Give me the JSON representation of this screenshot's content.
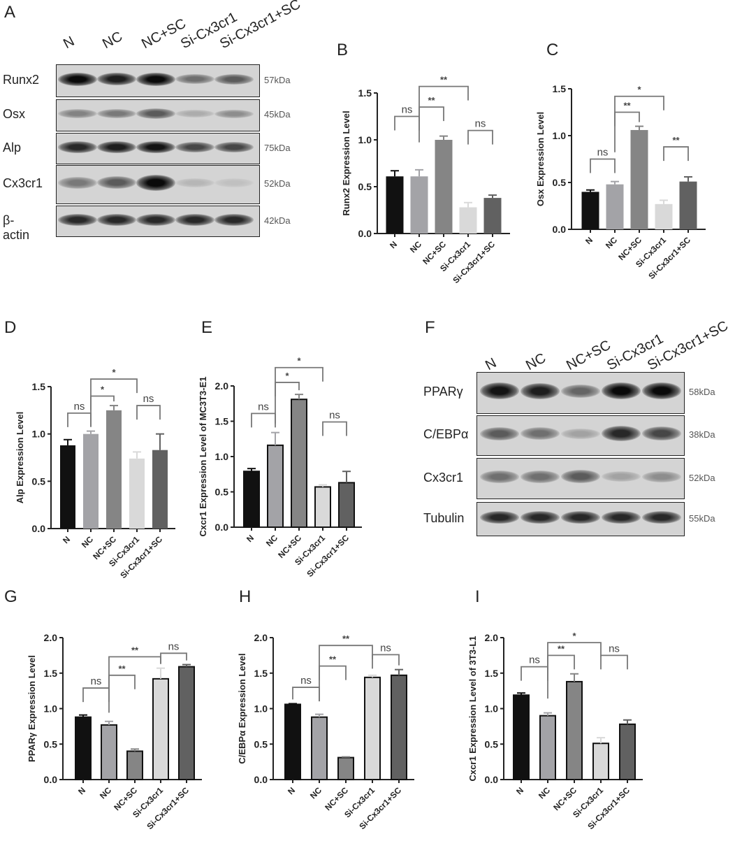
{
  "panel_letters": [
    "A",
    "B",
    "C",
    "D",
    "E",
    "F",
    "G",
    "H",
    "I"
  ],
  "groups": [
    "N",
    "NC",
    "NC+SC",
    "Si-Cx3cr1",
    "Si-Cx3cr1+SC"
  ],
  "group_colors": [
    "#111111",
    "#a3a3a7",
    "#858585",
    "#d9d9d9",
    "#616161"
  ],
  "blot_A": {
    "lanes": [
      "N",
      "NC",
      "NC+SC",
      "Si-Cx3cr1",
      "Si-Cx3cr1+SC"
    ],
    "rows": [
      {
        "protein": "Runx2",
        "kda": "57kDa",
        "band_intensity": [
          1.0,
          0.9,
          1.0,
          0.5,
          0.6
        ]
      },
      {
        "protein": "Osx",
        "kda": "45kDa",
        "band_intensity": [
          0.4,
          0.45,
          0.6,
          0.2,
          0.35
        ]
      },
      {
        "protein": "Alp",
        "kda": "75kDa",
        "band_intensity": [
          0.85,
          0.9,
          0.95,
          0.7,
          0.7
        ]
      },
      {
        "protein": "Cx3cr1",
        "kda": "52kDa",
        "band_intensity": [
          0.45,
          0.6,
          1.0,
          0.15,
          0.1
        ]
      },
      {
        "protein": "β-actin",
        "kda": "42kDa",
        "band_intensity": [
          0.85,
          0.85,
          0.85,
          0.85,
          0.85
        ]
      }
    ]
  },
  "blot_F": {
    "lanes": [
      "N",
      "NC",
      "NC+SC",
      "Si-Cx3cr1",
      "Si-Cx3cr1+SC"
    ],
    "rows": [
      {
        "protein": "PPARγ",
        "kda": "58kDa",
        "band_intensity": [
          0.95,
          0.9,
          0.55,
          1.0,
          1.0
        ]
      },
      {
        "protein": "C/EBPα",
        "kda": "38kDa",
        "band_intensity": [
          0.6,
          0.5,
          0.25,
          0.85,
          0.7
        ]
      },
      {
        "protein": "Cx3cr1",
        "kda": "52kDa",
        "band_intensity": [
          0.5,
          0.5,
          0.6,
          0.25,
          0.35
        ]
      },
      {
        "protein": "Tubulin",
        "kda": "55kDa",
        "band_intensity": [
          0.85,
          0.85,
          0.85,
          0.85,
          0.85
        ]
      }
    ]
  },
  "chart_data": [
    {
      "panel": "B",
      "type": "bar",
      "ylabel": "Runx2 Expression Level",
      "ylim": [
        0,
        1.5
      ],
      "yticks": [
        "0.0",
        "0.5",
        "1.0",
        "1.5"
      ],
      "categories": [
        "N",
        "NC",
        "NC+SC",
        "Si-Cx3cr1",
        "Si-Cx3cr1+SC"
      ],
      "values": [
        0.61,
        0.61,
        1.0,
        0.28,
        0.38
      ],
      "errors": [
        0.06,
        0.07,
        0.04,
        0.05,
        0.03
      ],
      "significance": [
        {
          "from": 0,
          "to": 1,
          "level": 1.25,
          "label": "ns"
        },
        {
          "from": 1,
          "to": 2,
          "level": 1.35,
          "label": "**"
        },
        {
          "from": 1,
          "to": 3,
          "level": 1.57,
          "label": "**"
        },
        {
          "from": 3,
          "to": 4,
          "level": 1.1,
          "label": "ns"
        }
      ]
    },
    {
      "panel": "C",
      "type": "bar",
      "ylabel": "Osx Expression Level",
      "ylim": [
        0,
        1.5
      ],
      "yticks": [
        "0.0",
        "0.5",
        "1.0",
        "1.5"
      ],
      "categories": [
        "N",
        "NC",
        "NC+SC",
        "Si-Cx3cr1",
        "Si-Cx3cr1+SC"
      ],
      "values": [
        0.4,
        0.48,
        1.06,
        0.27,
        0.51
      ],
      "errors": [
        0.02,
        0.03,
        0.04,
        0.04,
        0.05
      ],
      "significance": [
        {
          "from": 0,
          "to": 1,
          "level": 0.75,
          "label": "ns"
        },
        {
          "from": 1,
          "to": 2,
          "level": 1.25,
          "label": "**"
        },
        {
          "from": 1,
          "to": 3,
          "level": 1.42,
          "label": "*"
        },
        {
          "from": 3,
          "to": 4,
          "level": 0.88,
          "label": "**"
        }
      ]
    },
    {
      "panel": "D",
      "type": "bar",
      "ylabel": "Alp Expression Level",
      "ylim": [
        0,
        1.5
      ],
      "yticks": [
        "0.0",
        "0.5",
        "1.0",
        "1.5"
      ],
      "categories": [
        "N",
        "NC",
        "NC+SC",
        "Si-Cx3cr1",
        "Si-Cx3cr1+SC"
      ],
      "values": [
        0.88,
        1.0,
        1.25,
        0.74,
        0.83
      ],
      "errors": [
        0.06,
        0.03,
        0.05,
        0.07,
        0.17
      ],
      "significance": [
        {
          "from": 0,
          "to": 1,
          "level": 1.22,
          "label": "ns"
        },
        {
          "from": 1,
          "to": 2,
          "level": 1.4,
          "label": "*"
        },
        {
          "from": 1,
          "to": 3,
          "level": 1.58,
          "label": "*"
        },
        {
          "from": 3,
          "to": 4,
          "level": 1.3,
          "label": "ns"
        }
      ]
    },
    {
      "panel": "E",
      "type": "bar",
      "ylabel": "Cxcr1 Expression Level of MC3T3-E1",
      "ylim": [
        0,
        2.0
      ],
      "yticks": [
        "0.0",
        "0.5",
        "1.0",
        "1.5",
        "2.0"
      ],
      "categories": [
        "N",
        "NC",
        "NC+SC",
        "Si-Cx3cr1",
        "Si-Cx3cr1+SC"
      ],
      "values": [
        0.79,
        1.16,
        1.81,
        0.57,
        0.63
      ],
      "errors": [
        0.04,
        0.18,
        0.07,
        0.03,
        0.16
      ],
      "significance": [
        {
          "from": 0,
          "to": 1,
          "level": 1.61,
          "label": "ns"
        },
        {
          "from": 1,
          "to": 2,
          "level": 2.05,
          "label": "*"
        },
        {
          "from": 1,
          "to": 3,
          "level": 2.26,
          "label": "*"
        },
        {
          "from": 3,
          "to": 4,
          "level": 1.49,
          "label": "ns"
        }
      ]
    },
    {
      "panel": "G",
      "type": "bar",
      "ylabel": "PPARγ Expression Level",
      "ylim": [
        0,
        2.0
      ],
      "yticks": [
        "0.0",
        "0.5",
        "1.0",
        "1.5",
        "2.0"
      ],
      "categories": [
        "N",
        "NC",
        "NC+SC",
        "Si-Cx3cr1",
        "Si-Cx3cr1+SC"
      ],
      "values": [
        0.88,
        0.77,
        0.4,
        1.42,
        1.59
      ],
      "errors": [
        0.03,
        0.05,
        0.03,
        0.15,
        0.03
      ],
      "significance": [
        {
          "from": 0,
          "to": 1,
          "level": 1.29,
          "label": "ns"
        },
        {
          "from": 1,
          "to": 2,
          "level": 1.47,
          "label": "**"
        },
        {
          "from": 1,
          "to": 3,
          "level": 1.73,
          "label": "**"
        },
        {
          "from": 3,
          "to": 4,
          "level": 1.78,
          "label": "ns"
        }
      ]
    },
    {
      "panel": "H",
      "type": "bar",
      "ylabel": "C/EBPα Expression Level",
      "ylim": [
        0,
        2.0
      ],
      "yticks": [
        "0.0",
        "0.5",
        "1.0",
        "1.5",
        "2.0"
      ],
      "categories": [
        "N",
        "NC",
        "NC+SC",
        "Si-Cx3cr1",
        "Si-Cx3cr1+SC"
      ],
      "values": [
        1.06,
        0.88,
        0.31,
        1.44,
        1.47
      ],
      "errors": [
        0.01,
        0.04,
        0.01,
        0.03,
        0.08
      ],
      "significance": [
        {
          "from": 0,
          "to": 1,
          "level": 1.3,
          "label": "ns"
        },
        {
          "from": 1,
          "to": 2,
          "level": 1.6,
          "label": "**"
        },
        {
          "from": 1,
          "to": 3,
          "level": 1.89,
          "label": "**"
        },
        {
          "from": 3,
          "to": 4,
          "level": 1.76,
          "label": "ns"
        }
      ]
    },
    {
      "panel": "I",
      "type": "bar",
      "ylabel": "Cxcr1 Expression Level of 3T3-L1",
      "ylim": [
        0,
        2.0
      ],
      "yticks": [
        "0.0",
        "0.5",
        "1.0",
        "1.5",
        "2.0"
      ],
      "categories": [
        "N",
        "NC",
        "NC+SC",
        "Si-Cx3cr1",
        "Si-Cx3cr1+SC"
      ],
      "values": [
        1.19,
        0.9,
        1.38,
        0.51,
        0.78
      ],
      "errors": [
        0.03,
        0.04,
        0.11,
        0.08,
        0.06
      ],
      "significance": [
        {
          "from": 0,
          "to": 1,
          "level": 1.59,
          "label": "ns"
        },
        {
          "from": 1,
          "to": 2,
          "level": 1.75,
          "label": "**"
        },
        {
          "from": 1,
          "to": 3,
          "level": 1.93,
          "label": "*"
        },
        {
          "from": 3,
          "to": 4,
          "level": 1.75,
          "label": "ns"
        }
      ]
    }
  ]
}
